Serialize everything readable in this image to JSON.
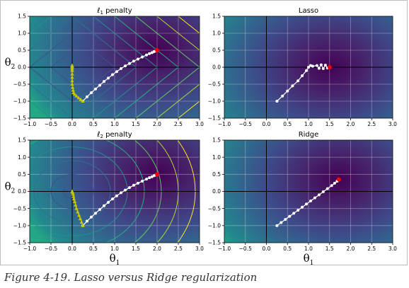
{
  "caption": "Figure 4-19. Lasso versus Ridge regularization",
  "colors": {
    "background_low": "#440154",
    "background_high": "#21918c",
    "contour": "#fde725",
    "path": "#ffffff",
    "path_yellow": "#c8c800",
    "optimum": "#ff0000",
    "axis": "#000000",
    "grid": "#ffffff"
  },
  "chart_data": [
    {
      "type": "line",
      "panel": "top-left",
      "title_prefix": "ℓ",
      "title_sub": "1",
      "title_suffix": " penalty",
      "xlim": [
        -1.0,
        3.0
      ],
      "ylim": [
        -1.5,
        1.5
      ],
      "xticks": [
        "−1.0",
        "−0.5",
        "0.0",
        "0.5",
        "1.0",
        "1.5",
        "2.0",
        "2.5",
        "3.0"
      ],
      "xtick_values": [
        -1.0,
        -0.5,
        0.0,
        0.5,
        1.0,
        1.5,
        2.0,
        2.5,
        3.0
      ],
      "yticks": [
        "−1.5",
        "−1.0",
        "−0.5",
        "0.0",
        "0.5",
        "1.0",
        "1.5"
      ],
      "ytick_values": [
        -1.5,
        -1.0,
        -0.5,
        0.0,
        0.5,
        1.0,
        1.5
      ],
      "ylabel_base": "θ",
      "ylabel_sub": "2",
      "xlabel_base": "",
      "xlabel_sub": "",
      "contour_style": "l1",
      "background_center": [
        2.0,
        0.5
      ],
      "series": [
        {
          "color": "#ffffff",
          "x": [
            0.25,
            0.35,
            0.45,
            0.55,
            0.65,
            0.75,
            0.85,
            0.95,
            1.05,
            1.15,
            1.25,
            1.35,
            1.45,
            1.55,
            1.65,
            1.75,
            1.82,
            1.88,
            1.93,
            1.97,
            2.0
          ],
          "y": [
            -1.0,
            -0.87,
            -0.75,
            -0.64,
            -0.53,
            -0.42,
            -0.32,
            -0.22,
            -0.13,
            -0.04,
            0.04,
            0.11,
            0.18,
            0.24,
            0.3,
            0.36,
            0.4,
            0.43,
            0.46,
            0.48,
            0.5
          ]
        },
        {
          "color": "#c8c800",
          "x": [
            0.25,
            0.2,
            0.15,
            0.1,
            0.06,
            0.03,
            0.02,
            0.01,
            0.0,
            0.0,
            0.0,
            0.0,
            0.0,
            0.0,
            0.0,
            0.0,
            0.0
          ],
          "y": [
            -1.0,
            -0.95,
            -0.9,
            -0.85,
            -0.8,
            -0.75,
            -0.68,
            -0.6,
            -0.5,
            -0.4,
            -0.3,
            -0.2,
            -0.1,
            -0.05,
            0.0,
            0.03,
            0.05
          ]
        }
      ],
      "optimum": [
        2.0,
        0.5
      ]
    },
    {
      "type": "line",
      "panel": "top-right",
      "title_prefix": "Lasso",
      "title_sub": "",
      "title_suffix": "",
      "xlim": [
        -1.0,
        3.0
      ],
      "ylim": [
        -1.5,
        1.5
      ],
      "xticks": [
        "−1.0",
        "−0.5",
        "0.0",
        "0.5",
        "1.0",
        "1.5",
        "2.0",
        "2.5",
        "3.0"
      ],
      "xtick_values": [
        -1.0,
        -0.5,
        0.0,
        0.5,
        1.0,
        1.5,
        2.0,
        2.5,
        3.0
      ],
      "yticks": [
        "−1.5",
        "−1.0",
        "−0.5",
        "0.0",
        "0.5",
        "1.0",
        "1.5"
      ],
      "ytick_values": [
        -1.5,
        -1.0,
        -0.5,
        0.0,
        0.5,
        1.0,
        1.5
      ],
      "ylabel_base": "",
      "ylabel_sub": "",
      "xlabel_base": "",
      "xlabel_sub": "",
      "contour_style": "none",
      "background_center": [
        1.5,
        0.0
      ],
      "series": [
        {
          "color": "#ffffff",
          "x": [
            0.25,
            0.38,
            0.5,
            0.62,
            0.75,
            0.85,
            0.95,
            1.0,
            1.05,
            1.1,
            1.2,
            1.25,
            1.3,
            1.35,
            1.4,
            1.45,
            1.5
          ],
          "y": [
            -1.0,
            -0.85,
            -0.7,
            -0.55,
            -0.4,
            -0.25,
            -0.1,
            0.0,
            0.05,
            0.03,
            0.05,
            -0.03,
            0.07,
            -0.04,
            0.06,
            -0.02,
            0.0
          ]
        }
      ],
      "optimum": [
        1.5,
        0.0
      ]
    },
    {
      "type": "line",
      "panel": "bottom-left",
      "title_prefix": "ℓ",
      "title_sub": "2",
      "title_suffix": " penalty",
      "xlim": [
        -1.0,
        3.0
      ],
      "ylim": [
        -1.5,
        1.5
      ],
      "xticks": [
        "−1.0",
        "−0.5",
        "0.0",
        "0.5",
        "1.0",
        "1.5",
        "2.0",
        "2.5",
        "3.0"
      ],
      "xtick_values": [
        -1.0,
        -0.5,
        0.0,
        0.5,
        1.0,
        1.5,
        2.0,
        2.5,
        3.0
      ],
      "yticks": [
        "−1.5",
        "−1.0",
        "−0.5",
        "0.0",
        "0.5",
        "1.0",
        "1.5"
      ],
      "ytick_values": [
        -1.5,
        -1.0,
        -0.5,
        0.0,
        0.5,
        1.0,
        1.5
      ],
      "ylabel_base": "θ",
      "ylabel_sub": "2",
      "xlabel_base": "θ",
      "xlabel_sub": "1",
      "contour_style": "l2",
      "background_center": [
        2.0,
        0.5
      ],
      "series": [
        {
          "color": "#ffffff",
          "x": [
            0.25,
            0.35,
            0.45,
            0.55,
            0.65,
            0.75,
            0.85,
            0.95,
            1.05,
            1.15,
            1.25,
            1.35,
            1.45,
            1.55,
            1.65,
            1.75,
            1.82,
            1.88,
            1.93,
            1.97,
            2.0
          ],
          "y": [
            -1.0,
            -0.87,
            -0.75,
            -0.64,
            -0.53,
            -0.42,
            -0.32,
            -0.22,
            -0.13,
            -0.04,
            0.04,
            0.11,
            0.18,
            0.24,
            0.3,
            0.36,
            0.4,
            0.43,
            0.46,
            0.48,
            0.5
          ]
        },
        {
          "color": "#c8c800",
          "x": [
            0.25,
            0.22,
            0.19,
            0.16,
            0.13,
            0.1,
            0.08,
            0.06,
            0.04,
            0.03,
            0.02,
            0.01,
            0.0
          ],
          "y": [
            -1.0,
            -0.9,
            -0.8,
            -0.7,
            -0.6,
            -0.5,
            -0.4,
            -0.3,
            -0.22,
            -0.15,
            -0.08,
            -0.03,
            0.0
          ]
        }
      ],
      "optimum": [
        2.0,
        0.5
      ]
    },
    {
      "type": "line",
      "panel": "bottom-right",
      "title_prefix": "Ridge",
      "title_sub": "",
      "title_suffix": "",
      "xlim": [
        -1.0,
        3.0
      ],
      "ylim": [
        -1.5,
        1.5
      ],
      "xticks": [
        "−1.0",
        "−0.5",
        "0.0",
        "0.5",
        "1.0",
        "1.5",
        "2.0",
        "2.5",
        "3.0"
      ],
      "xtick_values": [
        -1.0,
        -0.5,
        0.0,
        0.5,
        1.0,
        1.5,
        2.0,
        2.5,
        3.0
      ],
      "yticks": [
        "−1.5",
        "−1.0",
        "−0.5",
        "0.0",
        "0.5",
        "1.0",
        "1.5"
      ],
      "ytick_values": [
        -1.5,
        -1.0,
        -0.5,
        0.0,
        0.5,
        1.0,
        1.5
      ],
      "ylabel_base": "",
      "ylabel_sub": "",
      "xlabel_base": "θ",
      "xlabel_sub": "1",
      "contour_style": "none",
      "background_center": [
        1.7,
        0.35
      ],
      "series": [
        {
          "color": "#ffffff",
          "x": [
            0.25,
            0.35,
            0.45,
            0.55,
            0.65,
            0.75,
            0.85,
            0.95,
            1.05,
            1.15,
            1.25,
            1.35,
            1.45,
            1.55,
            1.62,
            1.68,
            1.72
          ],
          "y": [
            -1.0,
            -0.91,
            -0.82,
            -0.73,
            -0.64,
            -0.55,
            -0.46,
            -0.37,
            -0.28,
            -0.19,
            -0.1,
            -0.01,
            0.08,
            0.17,
            0.24,
            0.3,
            0.35
          ]
        }
      ],
      "optimum": [
        1.72,
        0.35
      ]
    }
  ]
}
